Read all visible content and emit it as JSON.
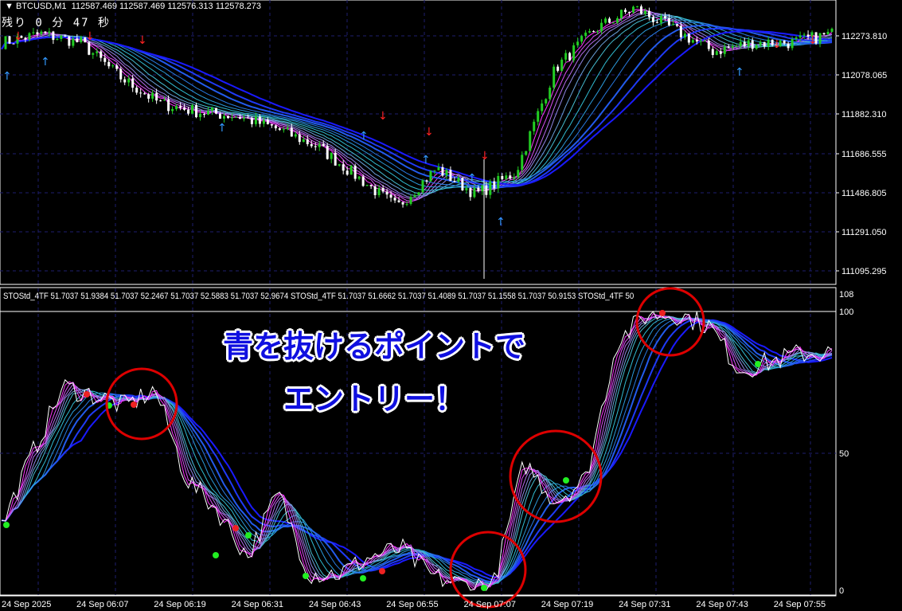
{
  "header": {
    "symbol_text": "BTCUSD,M1",
    "ohlc_text": "112587.469 112587.469 112576.313 112578.273",
    "timer_text": "残り 0 分 47 秒"
  },
  "indicator": {
    "header_text": "STOStd_4TF 51.7037 51.9384 51.7037 52.2467 51.7037 52.5883 51.7037 52.9674  STOStd_4TF 51.7037 51.6662 51.7037 51.4089 51.7037 51.1558 51.7037 50.9153  STOStd_4TF 50",
    "levels": [
      "108",
      "100",
      "50",
      "0"
    ]
  },
  "annotation": {
    "line1": "青を抜けるポイントで",
    "line2": "エントリー！",
    "color": "#1010e0"
  },
  "colors": {
    "up": "#22cc22",
    "down": "#ffffff",
    "fast_line": "#ffffff",
    "ribbon_start": "#ff33ff",
    "ribbon_mid": "#33cccc",
    "ribbon_end": "#1a1aff",
    "grid": "#1e1e6e",
    "circle": "#dd0000"
  },
  "price_axis": [
    "112273.810",
    "112078.065",
    "111882.310",
    "111686.555",
    "111486.805",
    "111291.050",
    "111095.295"
  ],
  "time_axis": [
    "24 Sep 2025",
    "24 Sep 06:07",
    "24 Sep 06:19",
    "24 Sep 06:31",
    "24 Sep 06:43",
    "24 Sep 06:55",
    "24 Sep 07:07",
    "24 Sep 07:19",
    "24 Sep 07:31",
    "24 Sep 07:43",
    "24 Sep 07:55"
  ],
  "chart_data": [
    {
      "type": "candlestick",
      "symbol": "BTCUSD,M1",
      "approx_close_path": [
        112174,
        112214,
        112174,
        112014,
        111894,
        111854,
        111834,
        111774,
        111694,
        111555,
        111415,
        111595,
        111475,
        111575,
        112054,
        112234,
        112334,
        112234,
        112134,
        112174,
        112174,
        112214
      ],
      "ylim": [
        111060,
        112370
      ]
    },
    {
      "type": "line",
      "name": "STOStd_4TF",
      "approx_values": [
        23,
        49,
        73,
        70,
        66,
        72,
        40,
        29,
        12,
        35,
        6,
        6,
        12,
        15,
        5,
        2,
        2,
        46,
        32,
        40,
        89,
        99,
        99,
        95,
        79,
        82,
        85,
        85
      ],
      "ylim": [
        0,
        108
      ]
    }
  ]
}
